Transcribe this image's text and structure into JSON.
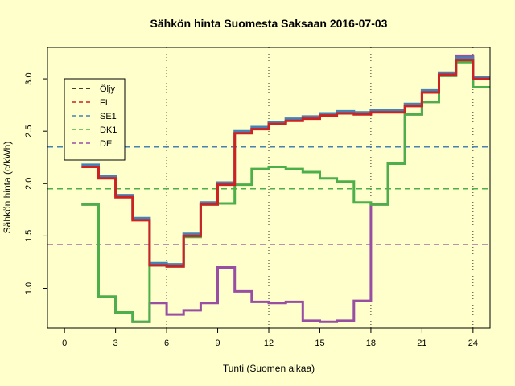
{
  "chart_data": {
    "type": "line",
    "style": "step",
    "title": "Sähkön hinta Suomesta Saksaan 2016-07-03",
    "xlabel": "Tunti (Suomen aikaa)",
    "ylabel": "Sähkön hinta (c/kWh)",
    "xlim": [
      -1,
      25
    ],
    "ylim": [
      0.62,
      3.3
    ],
    "xticks": [
      0,
      3,
      6,
      9,
      12,
      15,
      18,
      21,
      24
    ],
    "yticks": [
      1.0,
      1.5,
      2.0,
      2.5,
      3.0
    ],
    "vlines": [
      6,
      12,
      18,
      24
    ],
    "legend_position": "top-left",
    "x": [
      1,
      2,
      3,
      4,
      5,
      6,
      7,
      8,
      9,
      10,
      11,
      12,
      13,
      14,
      15,
      16,
      17,
      18,
      19,
      20,
      21,
      22,
      23,
      24
    ],
    "hlines": [
      {
        "name": "Öljy",
        "value": 2.35,
        "color": "#000000"
      },
      {
        "name": "FI",
        "value": 2.35,
        "color": "#cc2222"
      },
      {
        "name": "SE1",
        "value": 2.35,
        "color": "#4682b4"
      },
      {
        "name": "DK1",
        "value": 1.95,
        "color": "#4daf4a"
      },
      {
        "name": "DE",
        "value": 1.42,
        "color": "#984ea3"
      }
    ],
    "series": [
      {
        "name": "DE",
        "color": "#984ea3",
        "values": [
          1.8,
          0.92,
          0.77,
          0.68,
          0.86,
          0.75,
          0.79,
          0.86,
          1.2,
          0.97,
          0.87,
          0.86,
          0.87,
          0.69,
          0.68,
          0.69,
          0.88,
          1.8,
          2.19,
          2.66,
          2.78,
          3.03,
          3.22,
          2.92
        ]
      },
      {
        "name": "DK1",
        "color": "#4daf4a",
        "values": [
          1.8,
          0.92,
          0.77,
          0.68,
          1.22,
          1.21,
          1.49,
          1.8,
          1.81,
          1.99,
          2.14,
          2.16,
          2.14,
          2.11,
          2.05,
          2.02,
          1.82,
          1.8,
          2.19,
          2.66,
          2.78,
          3.03,
          3.16,
          2.92
        ]
      },
      {
        "name": "SE1",
        "color": "#4682b4",
        "values": [
          2.18,
          2.07,
          1.89,
          1.67,
          1.24,
          1.23,
          1.52,
          1.82,
          2.01,
          2.5,
          2.54,
          2.59,
          2.62,
          2.64,
          2.67,
          2.69,
          2.68,
          2.7,
          2.7,
          2.76,
          2.89,
          3.06,
          3.2,
          3.02
        ]
      },
      {
        "name": "FI",
        "color": "#cc2222",
        "values": [
          2.16,
          2.05,
          1.87,
          1.65,
          1.22,
          1.21,
          1.5,
          1.8,
          1.99,
          2.48,
          2.52,
          2.57,
          2.6,
          2.62,
          2.65,
          2.67,
          2.66,
          2.68,
          2.68,
          2.74,
          2.87,
          3.04,
          3.18,
          3.0
        ]
      }
    ]
  }
}
